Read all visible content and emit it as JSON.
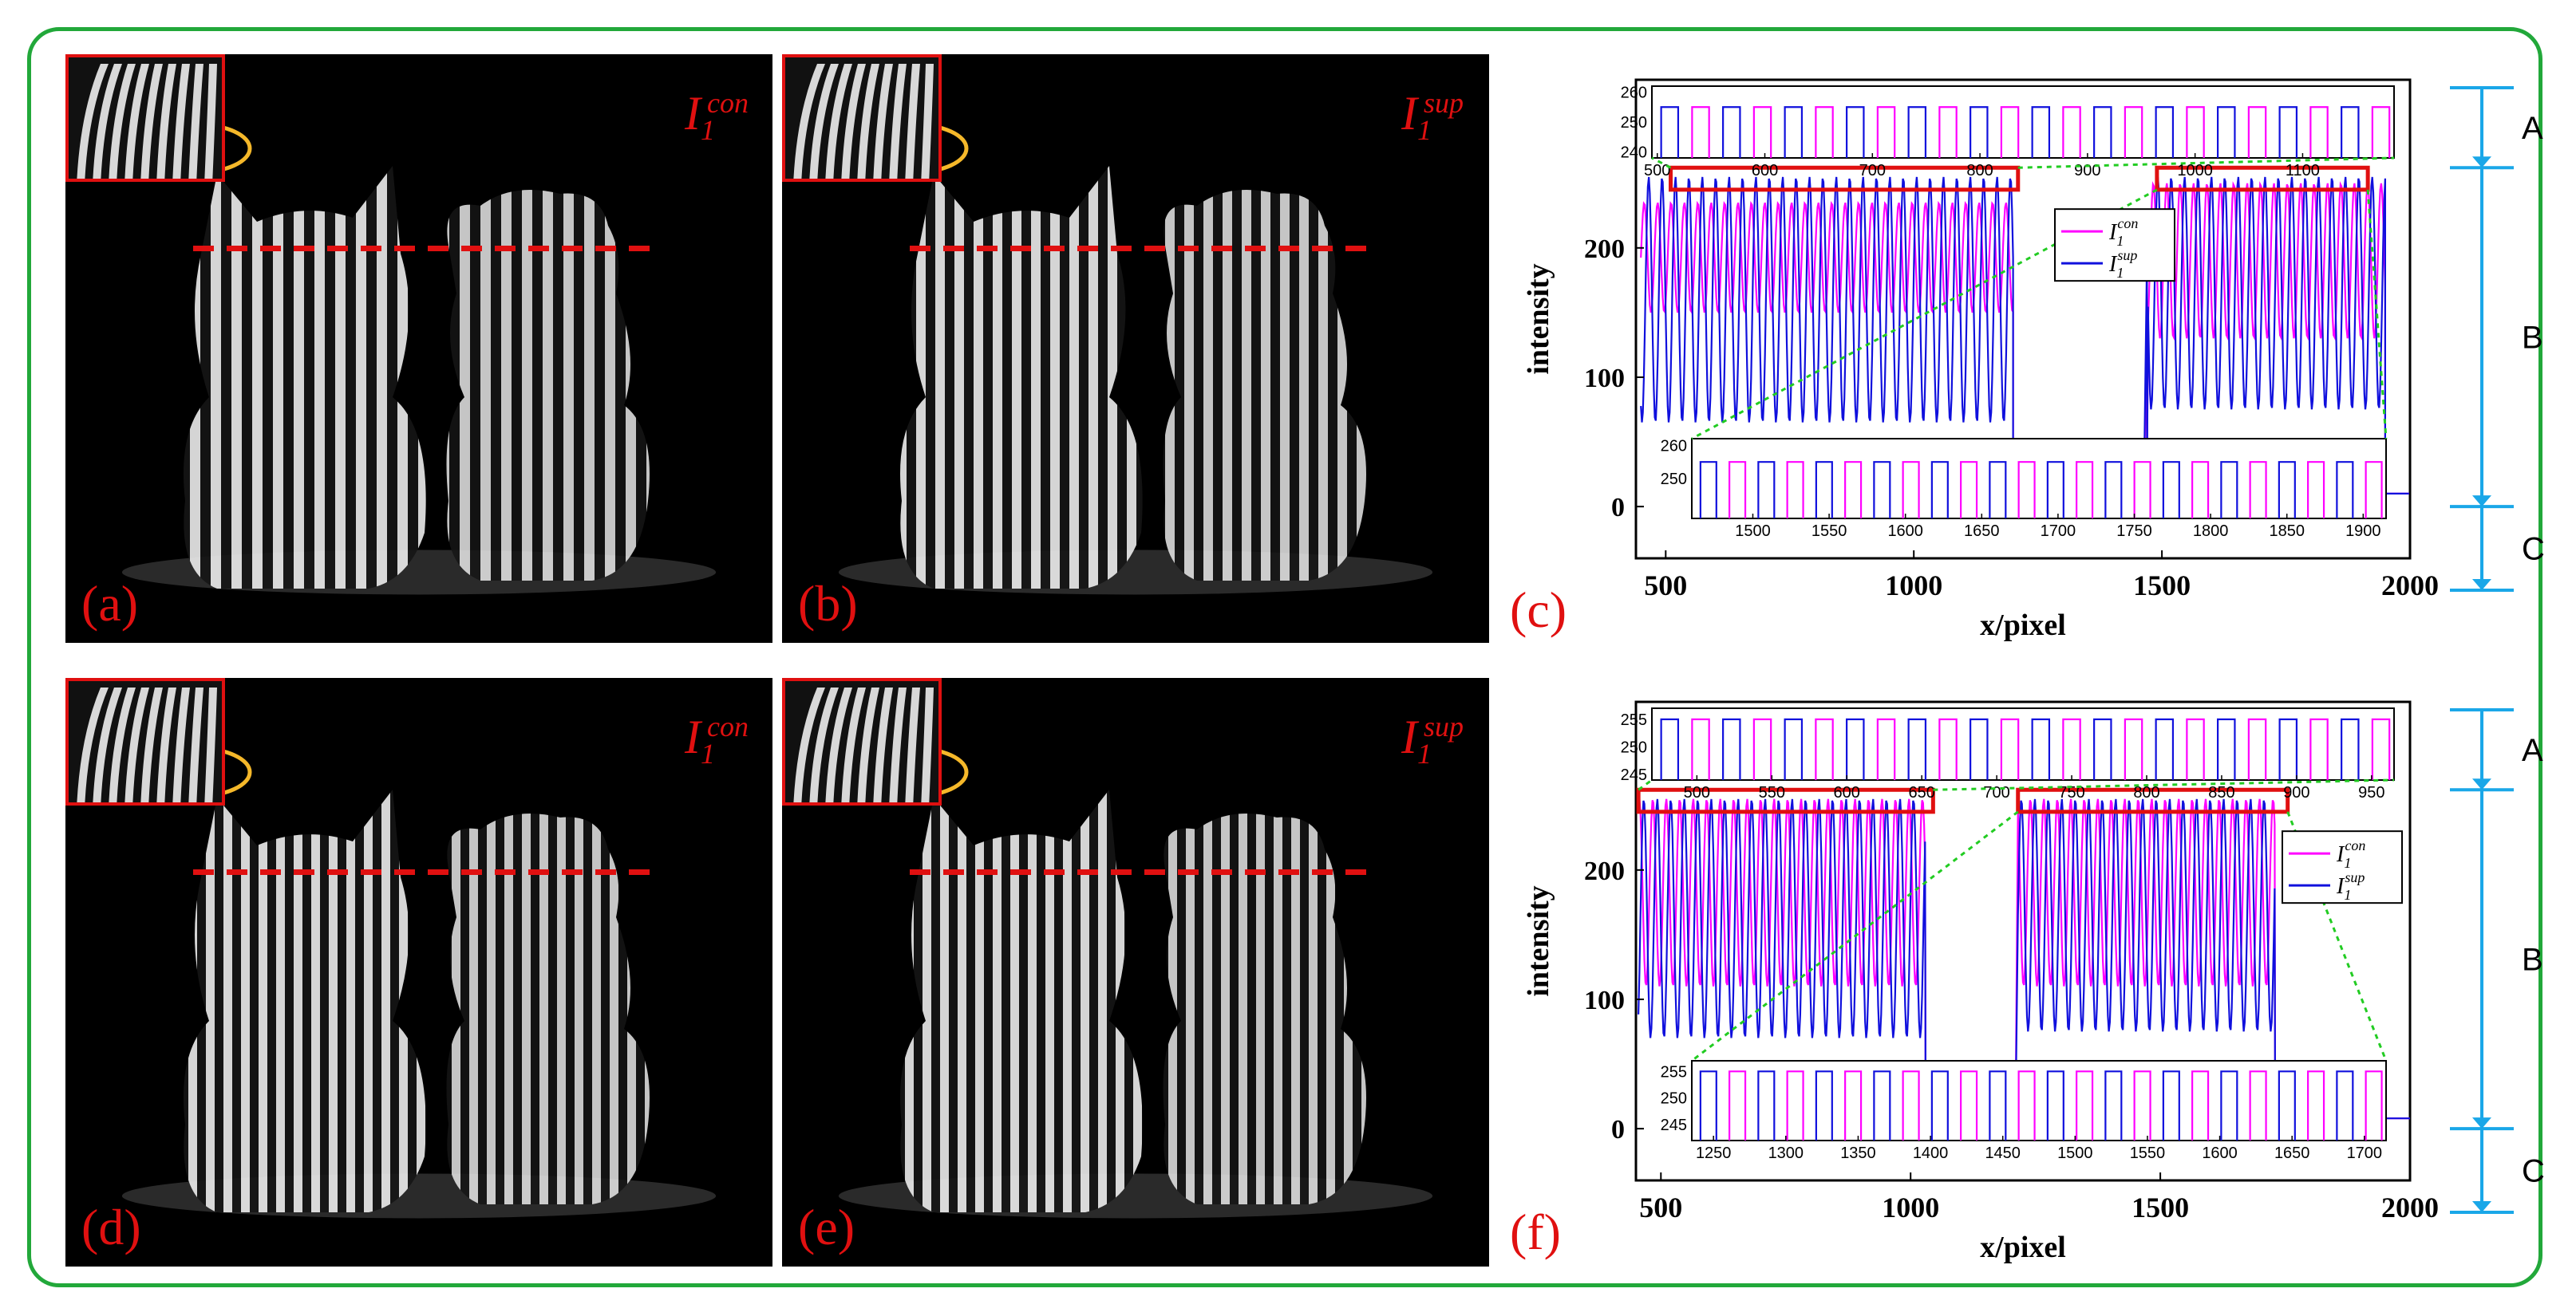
{
  "panels": [
    {
      "id": "a",
      "label": "(a)",
      "image_tag": {
        "base": "I",
        "sub": "1",
        "sup": "con"
      }
    },
    {
      "id": "b",
      "label": "(b)",
      "image_tag": {
        "base": "I",
        "sub": "1",
        "sup": "sup"
      }
    },
    {
      "id": "d",
      "label": "(d)",
      "image_tag": {
        "base": "I",
        "sub": "1",
        "sup": "con"
      }
    },
    {
      "id": "e",
      "label": "(e)",
      "image_tag": {
        "base": "I",
        "sub": "1",
        "sup": "sup"
      }
    }
  ],
  "chart_labels": {
    "c": "(c)",
    "f": "(f)"
  },
  "colors": {
    "frame": "#22a83a",
    "tag_red": "#e01010",
    "ellipse": "#f5b82a",
    "series_con": "#ff00ff",
    "series_sup": "#1010dd",
    "bracket": "#1aa7e8",
    "zoom_line": "#22cc22"
  },
  "chart_data": [
    {
      "id": "c",
      "type": "line",
      "xlabel": "x/pixel",
      "ylabel": "intensity",
      "xlim": [
        440,
        2000
      ],
      "ylim": [
        -40,
        330
      ],
      "xticks": [
        500,
        1000,
        1500,
        2000
      ],
      "yticks": [
        0,
        100,
        200
      ],
      "legend": {
        "placement": "center",
        "entries": [
          {
            "base": "I",
            "sub": "1",
            "sup": "con"
          },
          {
            "base": "I",
            "sub": "1",
            "sup": "sup"
          }
        ]
      },
      "series": [
        {
          "name": "I1con",
          "style": "fringes",
          "segments": [
            [
              450,
              1200,
              150,
              235
            ],
            [
              1470,
              1950,
              130,
              250
            ]
          ],
          "floor": [
            [
              1200,
              1470,
              20
            ],
            [
              1950,
              2000,
              10
            ]
          ]
        },
        {
          "name": "I1sup",
          "style": "fringes",
          "segments": [
            [
              450,
              1200,
              65,
              255
            ],
            [
              1470,
              1950,
              75,
              255
            ]
          ],
          "floor": [
            [
              1200,
              1470,
              20
            ],
            [
              1950,
              2000,
              10
            ]
          ]
        }
      ],
      "zoom_boxes": [
        [
          510,
          1210
        ],
        [
          1490,
          1915
        ]
      ],
      "insets": [
        {
          "position": "top",
          "xlim": [
            495,
            1185
          ],
          "ylim": [
            238,
            262
          ],
          "xticks": [
            500,
            600,
            700,
            800,
            900,
            1000,
            1100
          ],
          "yticks": [
            240,
            250,
            260
          ]
        },
        {
          "position": "bottom",
          "xlim": [
            1460,
            1915
          ],
          "ylim": [
            238,
            262
          ],
          "xticks": [
            1500,
            1550,
            1600,
            1650,
            1700,
            1750,
            1800,
            1850,
            1900
          ],
          "yticks": [
            250,
            260
          ]
        }
      ],
      "regions": [
        "A",
        "B",
        "C"
      ]
    },
    {
      "id": "f",
      "type": "line",
      "xlabel": "x/pixel",
      "ylabel": "intensity",
      "xlim": [
        450,
        2000
      ],
      "ylim": [
        -40,
        330
      ],
      "xticks": [
        500,
        1000,
        1500,
        2000
      ],
      "yticks": [
        0,
        100,
        200
      ],
      "legend": {
        "placement": "top-right",
        "entries": [
          {
            "base": "I",
            "sub": "1",
            "sup": "con"
          },
          {
            "base": "I",
            "sub": "1",
            "sup": "sup"
          }
        ]
      },
      "series": [
        {
          "name": "I1con",
          "style": "fringes",
          "segments": [
            [
              455,
              1030,
              110,
              255
            ],
            [
              1215,
              1730,
              110,
              255
            ]
          ],
          "floor": [
            [
              1030,
              1215,
              5
            ],
            [
              1730,
              2000,
              8
            ]
          ]
        },
        {
          "name": "I1sup",
          "style": "fringes",
          "segments": [
            [
              455,
              1030,
              70,
              255
            ],
            [
              1215,
              1730,
              75,
              255
            ]
          ],
          "floor": [
            [
              1030,
              1215,
              5
            ],
            [
              1730,
              2000,
              8
            ]
          ]
        }
      ],
      "zoom_boxes": [
        [
          455,
          1045
        ],
        [
          1215,
          1755
        ]
      ],
      "insets": [
        {
          "position": "top",
          "xlim": [
            470,
            965
          ],
          "ylim": [
            244,
            257
          ],
          "xticks": [
            500,
            550,
            600,
            650,
            700,
            750,
            800,
            850,
            900,
            950
          ],
          "yticks": [
            245,
            250,
            255
          ]
        },
        {
          "position": "bottom",
          "xlim": [
            1235,
            1715
          ],
          "ylim": [
            242,
            257
          ],
          "xticks": [
            1250,
            1300,
            1350,
            1400,
            1450,
            1500,
            1550,
            1600,
            1650,
            1700
          ],
          "yticks": [
            245,
            250,
            255
          ]
        }
      ],
      "regions": [
        "A",
        "B",
        "C"
      ]
    }
  ]
}
